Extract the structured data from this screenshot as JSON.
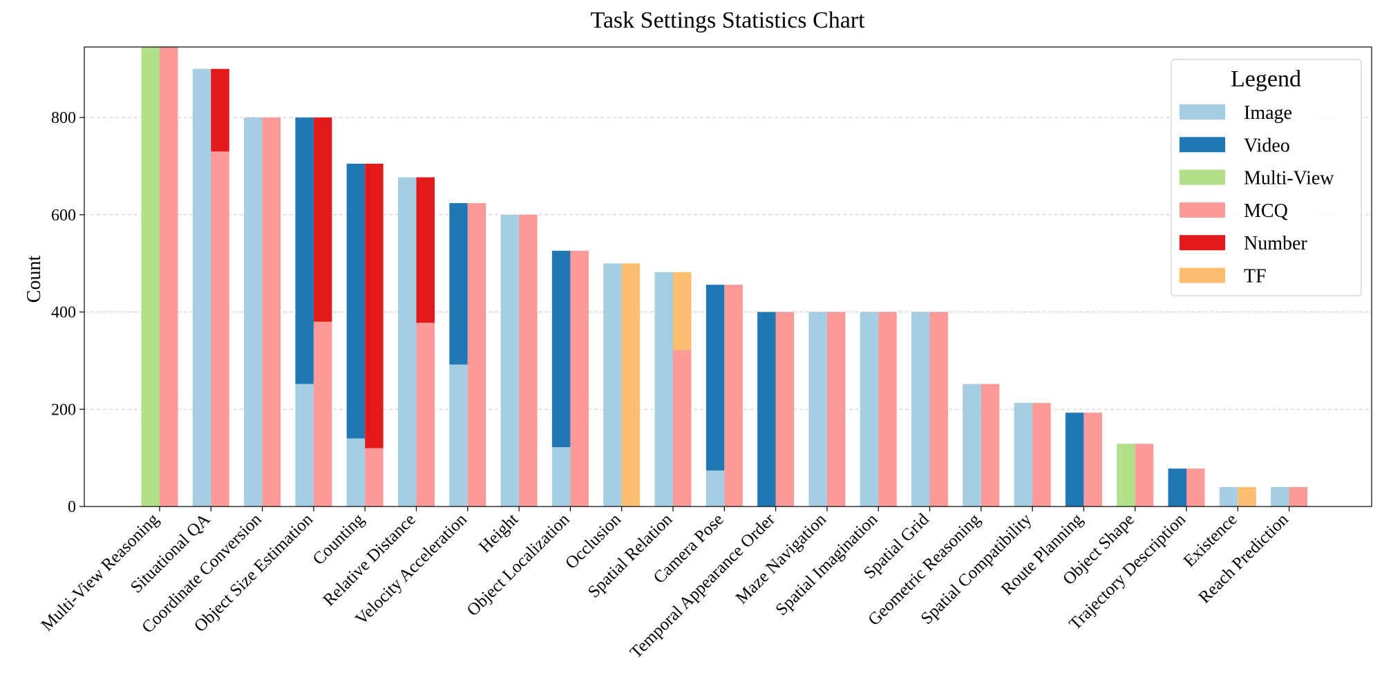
{
  "chart_data": {
    "type": "bar",
    "title": "Task Settings Statistics Chart",
    "xlabel": "",
    "ylabel": "Count",
    "ylim": [
      0,
      945
    ],
    "yticks": [
      0,
      200,
      400,
      600,
      800
    ],
    "grid": "horizontal dashed",
    "legend": {
      "title": "Legend",
      "placement": "top-right",
      "entries": [
        {
          "name": "Image",
          "color": "#a6cee3"
        },
        {
          "name": "Video",
          "color": "#1f78b4"
        },
        {
          "name": "Multi-View",
          "color": "#b2df8a"
        },
        {
          "name": "MCQ",
          "color": "#fb9a99"
        },
        {
          "name": "Number",
          "color": "#e31a1c"
        },
        {
          "name": "TF",
          "color": "#fdbf6f"
        }
      ]
    },
    "categories": [
      "Multi-View Reasoning",
      "Situational QA",
      "Coordinate Conversion",
      "Object Size Estimation",
      "Counting",
      "Relative Distance",
      "Velocity Acceleration",
      "Height",
      "Object Localization",
      "Occlusion",
      "Spatial Relation",
      "Camera Pose",
      "Temporal Appearance Order",
      "Maze Navigation",
      "Spatial Imagination",
      "Spatial Grid",
      "Geometric Reasoning",
      "Spatial Compatibility",
      "Route Planning",
      "Object Shape",
      "Trajectory Description",
      "Existence",
      "Reach Prediction"
    ],
    "input_modality_series": [
      {
        "name": "Image",
        "values": [
          0,
          900,
          800,
          252,
          140,
          677,
          292,
          600,
          122,
          500,
          482,
          74,
          0,
          400,
          400,
          400,
          252,
          213,
          0,
          0,
          0,
          40,
          40
        ]
      },
      {
        "name": "Video",
        "values": [
          0,
          0,
          0,
          548,
          565,
          0,
          332,
          0,
          404,
          0,
          0,
          382,
          400,
          0,
          0,
          0,
          0,
          0,
          193,
          0,
          78,
          0,
          0
        ]
      },
      {
        "name": "Multi-View",
        "values": [
          945,
          0,
          0,
          0,
          0,
          0,
          0,
          0,
          0,
          0,
          0,
          0,
          0,
          0,
          0,
          0,
          0,
          0,
          0,
          129,
          0,
          0,
          0
        ]
      }
    ],
    "answer_type_series": [
      {
        "name": "MCQ",
        "values": [
          945,
          730,
          800,
          380,
          120,
          378,
          624,
          600,
          526,
          0,
          322,
          456,
          400,
          400,
          400,
          400,
          252,
          213,
          193,
          129,
          78,
          0,
          40
        ]
      },
      {
        "name": "Number",
        "values": [
          0,
          170,
          0,
          420,
          585,
          299,
          0,
          0,
          0,
          0,
          0,
          0,
          0,
          0,
          0,
          0,
          0,
          0,
          0,
          0,
          0,
          0,
          0
        ]
      },
      {
        "name": "TF",
        "values": [
          0,
          0,
          0,
          0,
          0,
          0,
          0,
          0,
          0,
          500,
          160,
          0,
          0,
          0,
          0,
          0,
          0,
          0,
          0,
          0,
          0,
          40,
          0
        ]
      }
    ]
  }
}
